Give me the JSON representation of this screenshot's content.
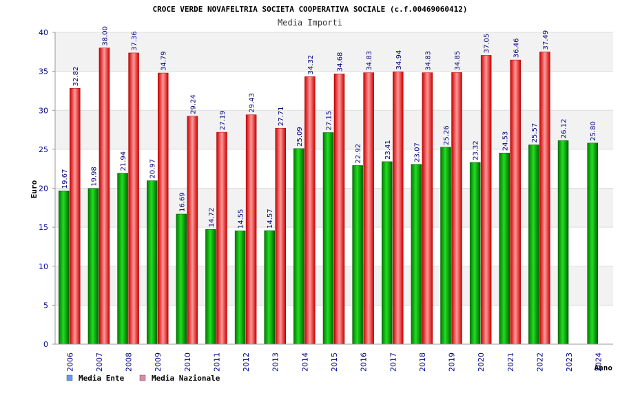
{
  "chart_data": {
    "type": "bar",
    "title": "CROCE VERDE NOVAFELTRIA SOCIETA COOPERATIVA SOCIALE (c.f.00469060412)",
    "subtitle": "Media Importi",
    "xlabel": "Anno",
    "ylabel": "Euro",
    "ylim": [
      0,
      40
    ],
    "yticks": [
      0,
      5,
      10,
      15,
      20,
      25,
      30,
      35,
      40
    ],
    "categories": [
      "2006",
      "2007",
      "2008",
      "2009",
      "2010",
      "2011",
      "2012",
      "2013",
      "2014",
      "2015",
      "2016",
      "2017",
      "2018",
      "2019",
      "2020",
      "2021",
      "2022",
      "2023",
      "2024"
    ],
    "series": [
      {
        "name": "Media Ente",
        "color": "#00aa00",
        "legend_color": "#6699ee",
        "values": [
          19.67,
          19.98,
          21.94,
          20.97,
          16.69,
          14.72,
          14.55,
          14.57,
          25.09,
          27.15,
          22.92,
          23.41,
          23.07,
          25.26,
          23.32,
          24.53,
          25.57,
          26.12,
          25.8
        ],
        "labels": [
          "19.67",
          "19.98",
          "21.94",
          "20.97",
          "16.69",
          "14.72",
          "14.55",
          "14.57",
          "25.09",
          "27.15",
          "22.92",
          "23.41",
          "23.07",
          "25.26",
          "23.32",
          "24.53",
          "25.57",
          "26.12",
          "25.80"
        ]
      },
      {
        "name": "Media Nazionale",
        "color": "#ee1111",
        "legend_color": "#dd88aa",
        "values": [
          32.82,
          38.0,
          37.36,
          34.79,
          29.24,
          27.19,
          29.43,
          27.71,
          34.32,
          34.68,
          34.83,
          34.94,
          34.83,
          34.85,
          37.05,
          36.46,
          37.49,
          null,
          null
        ],
        "labels": [
          "32.82",
          "38.00",
          "37.36",
          "34.79",
          "29.24",
          "27.19",
          "29.43",
          "27.71",
          "34.32",
          "34.68",
          "34.83",
          "34.94",
          "34.83",
          "34.85",
          "37.05",
          "36.46",
          "37.49",
          "",
          ""
        ]
      }
    ],
    "grid": true,
    "legend": "bottom-left"
  }
}
